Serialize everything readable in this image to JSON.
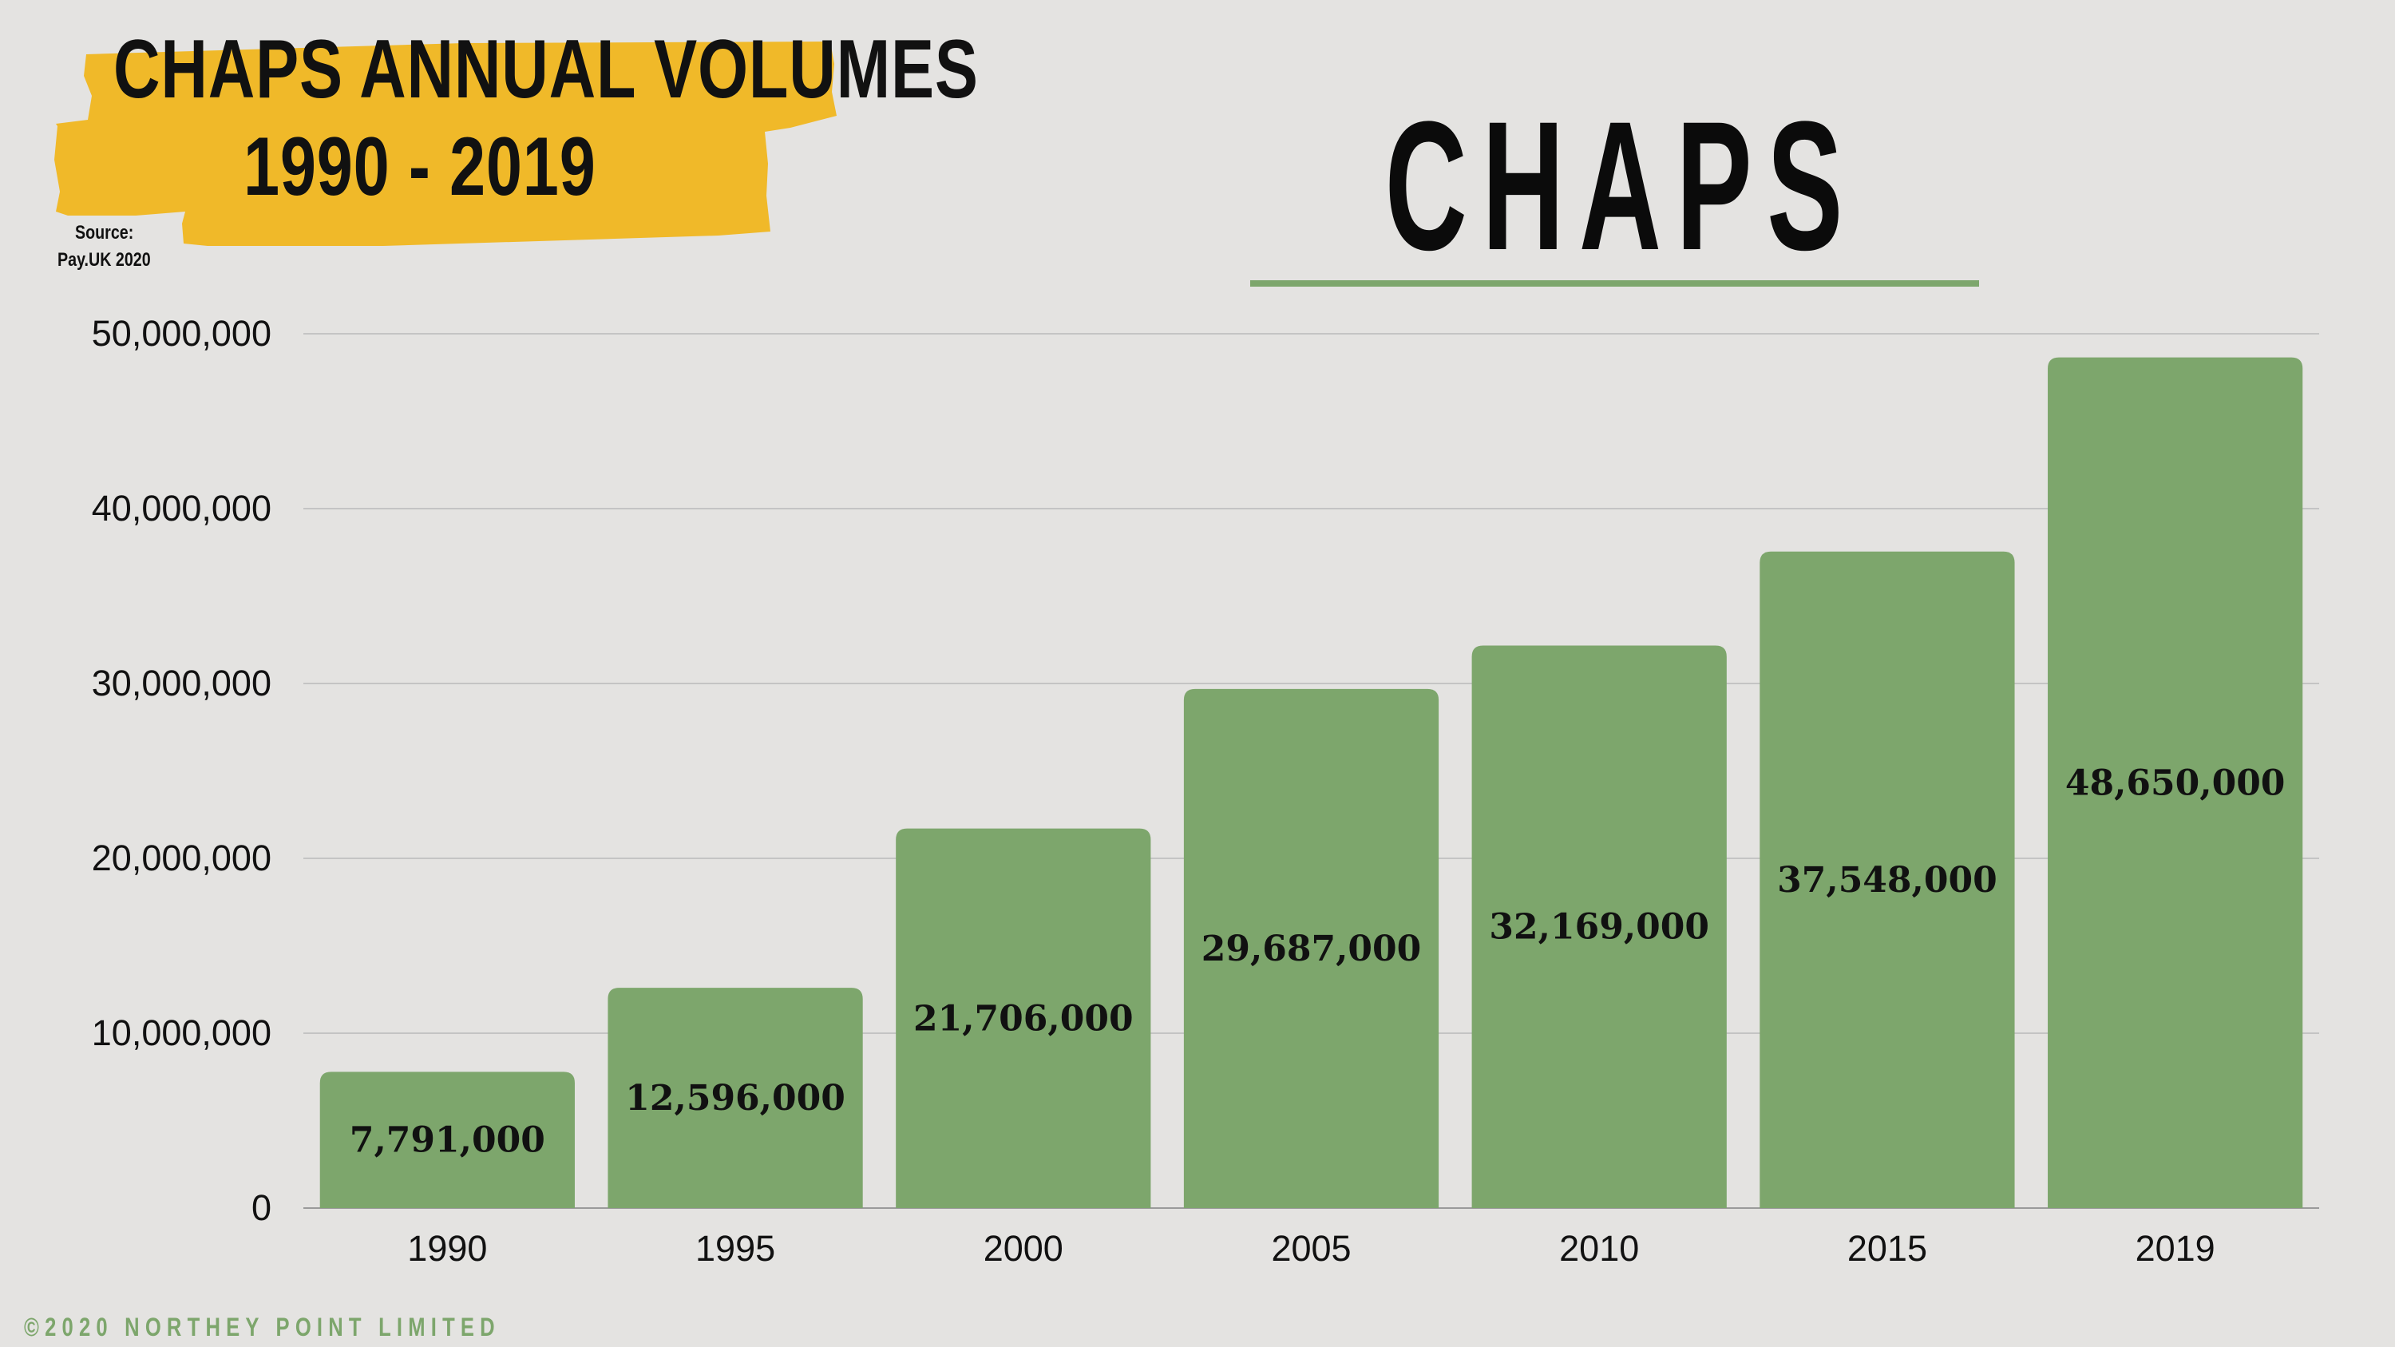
{
  "banner": {
    "line1": "CHAPS ANNUAL VOLUMES",
    "line2": "1990 - 2019",
    "source_label": "Source:",
    "source_value": "Pay.UK 2020"
  },
  "colors": {
    "banner_yellow": "#f0b929",
    "bar_green": "#7da66c",
    "background": "#e4e3e1",
    "gridline": "#c4c4c4"
  },
  "main_title": "CHAPS",
  "footer": {
    "copyright": "©2020 NORTHEY POINT LIMITED"
  },
  "chart_data": {
    "type": "bar",
    "title": "CHAPS",
    "categories": [
      "1990",
      "1995",
      "2000",
      "2005",
      "2010",
      "2015",
      "2019"
    ],
    "values": [
      7791000,
      12596000,
      21706000,
      29687000,
      32169000,
      37548000,
      48650000
    ],
    "value_labels": [
      "7,791,000",
      "12,596,000",
      "21,706,000",
      "29,687,000",
      "32,169,000",
      "37,548,000",
      "48,650,000"
    ],
    "yticks": [
      0,
      10000000,
      20000000,
      30000000,
      40000000,
      50000000
    ],
    "ytick_labels": [
      "0",
      "10,000,000",
      "20,000,000",
      "30,000,000",
      "40,000,000",
      "50,000,000"
    ],
    "ylim": [
      0,
      50000000
    ],
    "xlabel": "",
    "ylabel": "",
    "grid": true
  }
}
